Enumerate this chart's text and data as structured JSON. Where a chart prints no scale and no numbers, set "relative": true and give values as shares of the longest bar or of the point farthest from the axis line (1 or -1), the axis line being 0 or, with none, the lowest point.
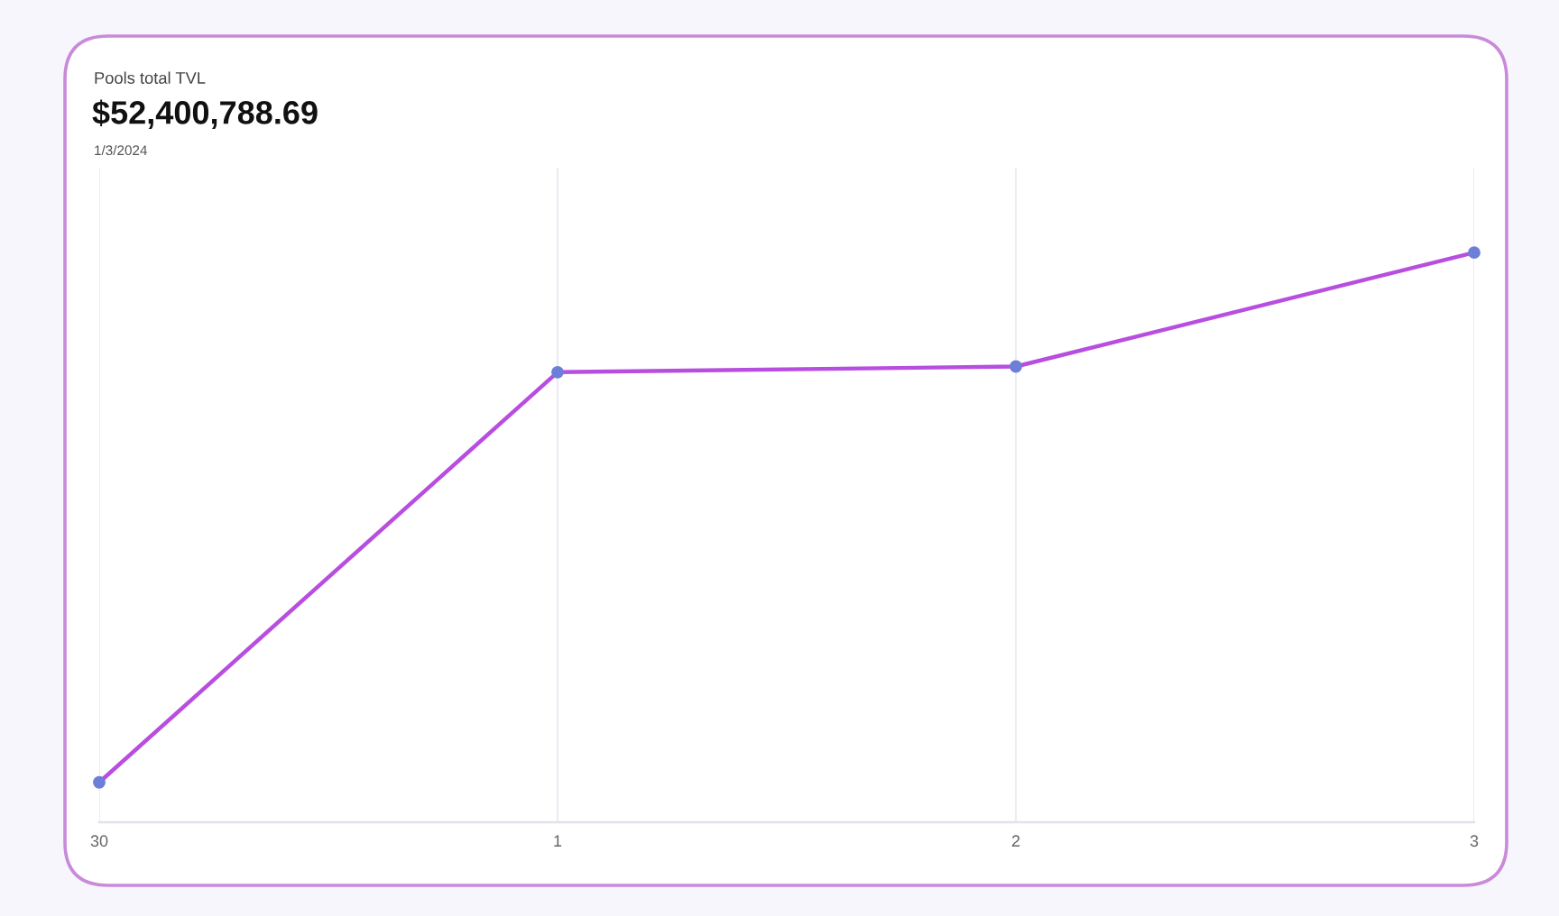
{
  "chart_data": {
    "type": "line",
    "title": "Pools total TVL",
    "subtitle": "$52,400,788.69",
    "annotations": [
      "1/3/2024"
    ],
    "categories": [
      "30",
      "1",
      "2",
      "3"
    ],
    "relative": true,
    "grid": "x",
    "marker": "circle",
    "series": [
      {
        "color": "#b84ee0",
        "colors": [
          "#6d7fd8",
          "#6d7fd8",
          "#6d7fd8",
          "#6d7fd8"
        ],
        "values": [
          0.07,
          0.79,
          0.8,
          1
        ]
      }
    ]
  }
}
